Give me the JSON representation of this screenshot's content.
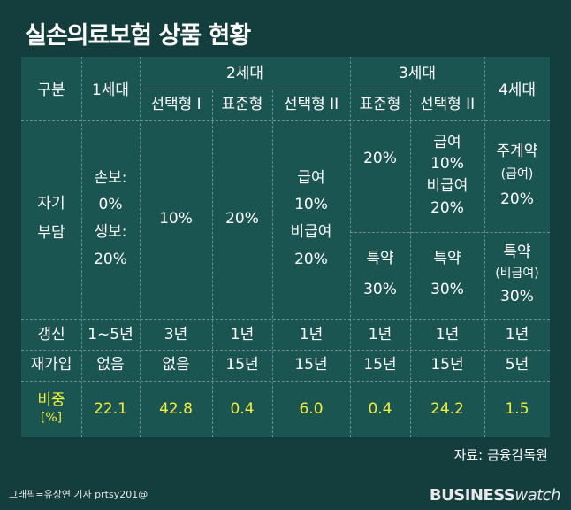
{
  "title": "실손의료보험 상품 현황",
  "header": {
    "category": "구분",
    "gen1": "1세대",
    "gen2": "2세대",
    "gen3": "3세대",
    "gen4": "4세대",
    "sub": [
      "선택형 I",
      "표준형",
      "선택형 II",
      "표준형",
      "선택형 II"
    ]
  },
  "rows": {
    "copay": {
      "label": [
        "자기",
        "부담"
      ],
      "gen1": [
        "손보:",
        "0%",
        "생보:",
        "20%"
      ],
      "gen2_select1": "10%",
      "gen2_standard": "20%",
      "gen2_select2": [
        "급여",
        "10%",
        "비급여",
        "20%"
      ],
      "gen3_standard_top": "20%",
      "gen3_select2_top": [
        "급여",
        "10%",
        "비급여",
        "20%"
      ],
      "gen3_standard_bottom": [
        "특약",
        "30%"
      ],
      "gen3_select2_bottom": [
        "특약",
        "30%"
      ],
      "gen4_top": [
        "주계약",
        "(급여)",
        "20%"
      ],
      "gen4_bottom": [
        "특약",
        "(비급여)",
        "30%"
      ]
    },
    "renewal": {
      "label": "갱신",
      "values": [
        "1~5년",
        "3년",
        "1년",
        "1년",
        "1년",
        "1년",
        "1년"
      ]
    },
    "rejoin": {
      "label": "재가입",
      "values": [
        "없음",
        "없음",
        "15년",
        "15년",
        "15년",
        "15년",
        "5년"
      ]
    },
    "share": {
      "label": [
        "비중",
        "[%]"
      ],
      "values": [
        "22.1",
        "42.8",
        "0.4",
        "6.0",
        "0.4",
        "24.2",
        "1.5"
      ]
    }
  },
  "source": "자료: 금융감독원",
  "credit": "그래픽=유상연 기자 prtsy201@",
  "logo": {
    "part1": "BUSINESS",
    "part2": "watch"
  },
  "colors": {
    "background": "#143d3d",
    "panel": "#1a5552",
    "highlight": "#f2ee3a"
  }
}
